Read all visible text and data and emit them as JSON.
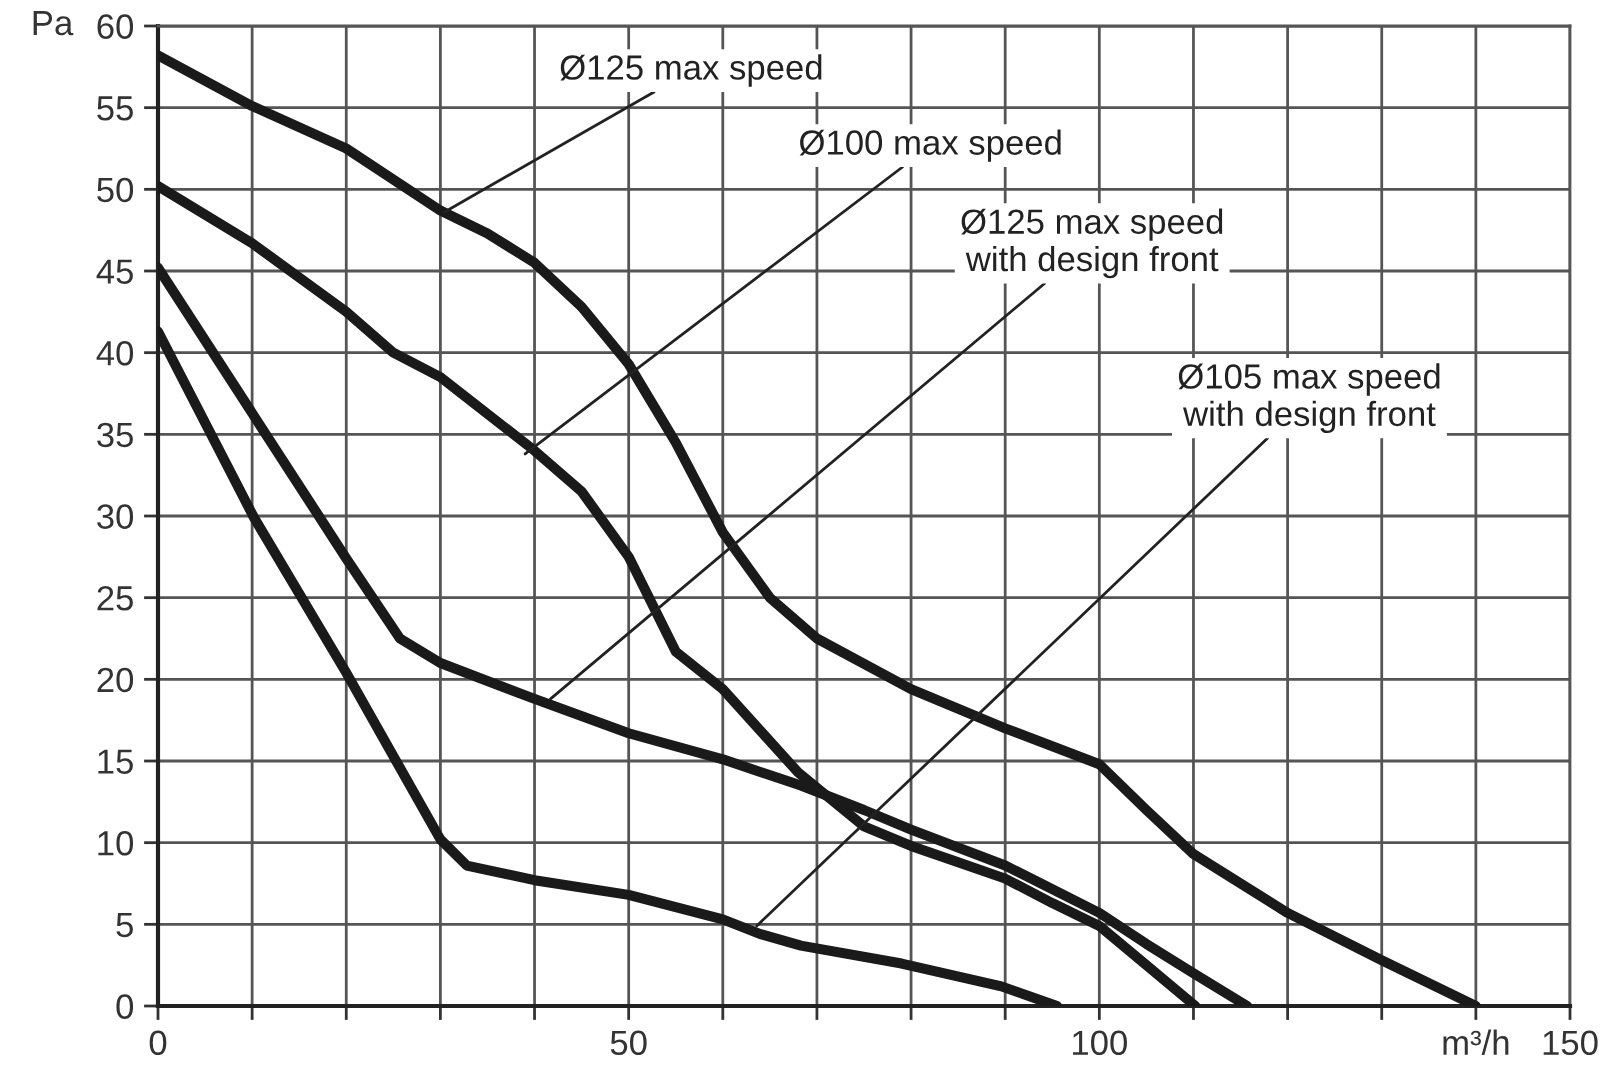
{
  "chart_data": {
    "type": "line",
    "ylabel": "Pa",
    "xlim": [
      0,
      150
    ],
    "ylim": [
      0,
      60
    ],
    "xticks": [
      0,
      {
        "value": 10,
        "label": null
      },
      {
        "value": 20,
        "label": null
      },
      {
        "value": 30,
        "label": null
      },
      {
        "value": 40,
        "label": null
      },
      50,
      {
        "value": 60,
        "label": null
      },
      {
        "value": 70,
        "label": null
      },
      {
        "value": 80,
        "label": null
      },
      {
        "value": 90,
        "label": null
      },
      100,
      {
        "value": 110,
        "label": null
      },
      {
        "value": 120,
        "label": null
      },
      {
        "value": 130,
        "label": null
      },
      {
        "value": 140,
        "label": "m³/h"
      },
      150
    ],
    "yticks": [
      0,
      5,
      10,
      15,
      20,
      25,
      30,
      35,
      40,
      45,
      50,
      55,
      60
    ],
    "grid": true,
    "marker": "none",
    "line_style": "solid",
    "series": [
      {
        "color": "#1a1a1a",
        "x": [
          0,
          10,
          20,
          30,
          35,
          40,
          45,
          50,
          55,
          60,
          65,
          70,
          80,
          90,
          100,
          105,
          110,
          120,
          130,
          140
        ],
        "values": [
          58.2,
          55.1,
          52.5,
          48.7,
          47.3,
          45.5,
          42.8,
          39.3,
          34.5,
          29,
          25,
          22.5,
          19.4,
          17,
          14.8,
          12,
          9.3,
          5.7,
          2.8,
          0
        ]
      },
      {
        "color": "#1a1a1a",
        "x": [
          0,
          10,
          20,
          25,
          30,
          40,
          45,
          50,
          55,
          60,
          68,
          75,
          80,
          85,
          90,
          95,
          100,
          105,
          110.2
        ],
        "values": [
          50.2,
          46.7,
          42.5,
          40,
          38.5,
          34,
          31.5,
          27.5,
          21.7,
          19.4,
          14.3,
          11,
          9.8,
          8.8,
          7.8,
          6.3,
          4.9,
          2.5,
          0
        ]
      },
      {
        "color": "#1a1a1a",
        "x": [
          0,
          10,
          20,
          25.7,
          30,
          40,
          50,
          60,
          68.3,
          75,
          80,
          90,
          100,
          105,
          110,
          115.7
        ],
        "values": [
          45.2,
          36.3,
          27.4,
          22.5,
          21,
          18.8,
          16.7,
          15.1,
          13.5,
          12,
          10.8,
          8.6,
          5.7,
          3.8,
          2,
          0
        ]
      },
      {
        "color": "#1a1a1a",
        "x": [
          0,
          10.2,
          20,
          30,
          32.8,
          40,
          50,
          60,
          64,
          68.3,
          79,
          89.6,
          95.5
        ],
        "values": [
          41.3,
          29.9,
          20.4,
          10.2,
          8.6,
          7.7,
          6.8,
          5.3,
          4.4,
          3.7,
          2.6,
          1.2,
          0
        ]
      }
    ],
    "annotations": [
      {
        "text": "Ø125 max speed",
        "x": 30.4,
        "y": 48.6
      },
      {
        "text": "Ø100 max speed",
        "x": 39,
        "y": 33.8
      },
      {
        "text": "Ø125 max speed\nwith design front",
        "x": 41.7,
        "y": 18.8
      },
      {
        "text": "Ø105 max speed\nwith design front",
        "x": 63.6,
        "y": 4.9
      }
    ]
  }
}
